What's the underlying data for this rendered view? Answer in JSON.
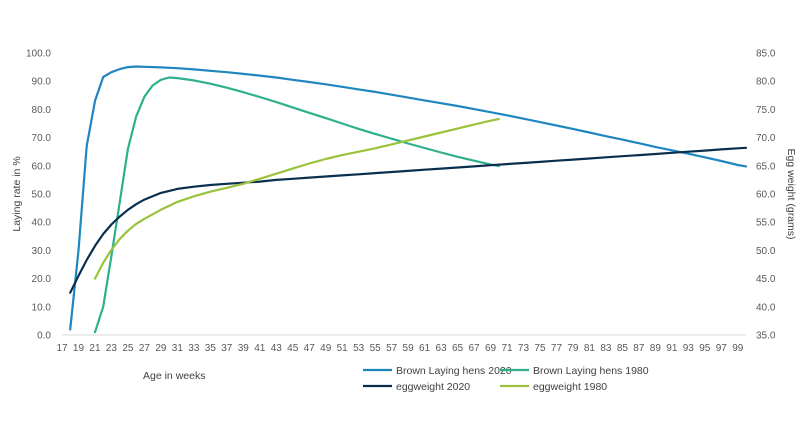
{
  "chart_data": {
    "type": "line",
    "title": "",
    "xlabel": "Age in weeks",
    "ylabel_left": "Laying rate in %",
    "ylabel_right": "Egg weight (grams)",
    "xlim": [
      17,
      100
    ],
    "ylim_left": [
      0,
      100
    ],
    "ylim_right": [
      35,
      85
    ],
    "x_ticks": [
      "17",
      "19",
      "21",
      "23",
      "25",
      "27",
      "29",
      "31",
      "33",
      "35",
      "37",
      "39",
      "41",
      "43",
      "45",
      "47",
      "49",
      "51",
      "53",
      "55",
      "57",
      "59",
      "61",
      "63",
      "65",
      "67",
      "69",
      "71",
      "73",
      "75",
      "77",
      "79",
      "81",
      "83",
      "85",
      "87",
      "89",
      "91",
      "93",
      "95",
      "97",
      "99"
    ],
    "y_left_ticks": [
      "0.0",
      "10.0",
      "20.0",
      "30.0",
      "40.0",
      "50.0",
      "60.0",
      "70.0",
      "80.0",
      "90.0",
      "100.0"
    ],
    "y_right_ticks": [
      "35.0",
      "40.0",
      "45.0",
      "50.0",
      "55.0",
      "60.0",
      "65.0",
      "70.0",
      "75.0",
      "80.0",
      "85.0"
    ],
    "legend_position": "bottom",
    "series": [
      {
        "name": "Brown Laying hens 2020",
        "axis": "left",
        "color": "#1f86bf",
        "points": [
          [
            18,
            2
          ],
          [
            19,
            30
          ],
          [
            20,
            67
          ],
          [
            21,
            83
          ],
          [
            22,
            91.5
          ],
          [
            23,
            93.2
          ],
          [
            24,
            94.3
          ],
          [
            25,
            95
          ],
          [
            26,
            95.2
          ],
          [
            27,
            95.1
          ],
          [
            29,
            94.9
          ],
          [
            31,
            94.6
          ],
          [
            33,
            94.2
          ],
          [
            35,
            93.7
          ],
          [
            37,
            93.2
          ],
          [
            39,
            92.6
          ],
          [
            41,
            92
          ],
          [
            43,
            91.3
          ],
          [
            45,
            90.5
          ],
          [
            47,
            89.7
          ],
          [
            49,
            88.9
          ],
          [
            51,
            88
          ],
          [
            53,
            87.1
          ],
          [
            55,
            86.2
          ],
          [
            57,
            85.2
          ],
          [
            59,
            84.2
          ],
          [
            61,
            83.2
          ],
          [
            63,
            82.2
          ],
          [
            65,
            81.2
          ],
          [
            67,
            80.1
          ],
          [
            69,
            79
          ],
          [
            71,
            77.9
          ],
          [
            73,
            76.7
          ],
          [
            75,
            75.5
          ],
          [
            77,
            74.3
          ],
          [
            79,
            73.1
          ],
          [
            81,
            71.8
          ],
          [
            83,
            70.5
          ],
          [
            85,
            69.3
          ],
          [
            87,
            68
          ],
          [
            89,
            66.7
          ],
          [
            91,
            65.5
          ],
          [
            93,
            64.3
          ],
          [
            95,
            63
          ],
          [
            97,
            61.7
          ],
          [
            99,
            60.3
          ],
          [
            100,
            59.8
          ]
        ]
      },
      {
        "name": "Brown Laying hens 1980",
        "axis": "left",
        "color": "#2fb08c",
        "points": [
          [
            21,
            1
          ],
          [
            22,
            10
          ],
          [
            23,
            28
          ],
          [
            24,
            47
          ],
          [
            25,
            66
          ],
          [
            26,
            77.5
          ],
          [
            27,
            84.5
          ],
          [
            28,
            88.5
          ],
          [
            29,
            90.5
          ],
          [
            30,
            91.3
          ],
          [
            31,
            91.1
          ],
          [
            33,
            90.3
          ],
          [
            35,
            89.1
          ],
          [
            37,
            87.7
          ],
          [
            39,
            86.1
          ],
          [
            41,
            84.4
          ],
          [
            43,
            82.6
          ],
          [
            45,
            80.7
          ],
          [
            47,
            78.8
          ],
          [
            49,
            76.9
          ],
          [
            51,
            75
          ],
          [
            53,
            73.1
          ],
          [
            55,
            71.3
          ],
          [
            57,
            69.6
          ],
          [
            59,
            67.9
          ],
          [
            61,
            66.3
          ],
          [
            63,
            64.7
          ],
          [
            65,
            63.2
          ],
          [
            67,
            61.8
          ],
          [
            69,
            60.5
          ],
          [
            70,
            59.9
          ]
        ]
      },
      {
        "name": "eggweight 2020",
        "axis": "right",
        "color": "#0a2f4e",
        "points": [
          [
            18,
            42.5
          ],
          [
            19,
            45.5
          ],
          [
            20,
            48.3
          ],
          [
            21,
            50.8
          ],
          [
            22,
            52.9
          ],
          [
            23,
            54.6
          ],
          [
            24,
            56
          ],
          [
            25,
            57.2
          ],
          [
            26,
            58.2
          ],
          [
            27,
            59
          ],
          [
            29,
            60.2
          ],
          [
            31,
            60.9
          ],
          [
            33,
            61.3
          ],
          [
            35,
            61.6
          ],
          [
            37,
            61.8
          ],
          [
            39,
            62
          ],
          [
            41,
            62.2
          ],
          [
            43,
            62.5
          ],
          [
            45,
            62.7
          ],
          [
            47,
            62.9
          ],
          [
            49,
            63.1
          ],
          [
            51,
            63.3
          ],
          [
            53,
            63.5
          ],
          [
            55,
            63.7
          ],
          [
            57,
            63.9
          ],
          [
            59,
            64.1
          ],
          [
            61,
            64.3
          ],
          [
            63,
            64.5
          ],
          [
            65,
            64.7
          ],
          [
            67,
            64.9
          ],
          [
            69,
            65.1
          ],
          [
            71,
            65.3
          ],
          [
            73,
            65.5
          ],
          [
            75,
            65.7
          ],
          [
            77,
            65.9
          ],
          [
            79,
            66.1
          ],
          [
            81,
            66.3
          ],
          [
            83,
            66.5
          ],
          [
            85,
            66.7
          ],
          [
            87,
            66.9
          ],
          [
            89,
            67.1
          ],
          [
            91,
            67.3
          ],
          [
            93,
            67.5
          ],
          [
            95,
            67.7
          ],
          [
            97,
            67.9
          ],
          [
            99,
            68.1
          ],
          [
            100,
            68.2
          ]
        ]
      },
      {
        "name": "eggweight 1980",
        "axis": "right",
        "color": "#9bc23c",
        "points": [
          [
            21,
            45
          ],
          [
            22,
            47.8
          ],
          [
            23,
            50.1
          ],
          [
            24,
            52
          ],
          [
            25,
            53.5
          ],
          [
            26,
            54.7
          ],
          [
            27,
            55.6
          ],
          [
            29,
            57.2
          ],
          [
            31,
            58.6
          ],
          [
            33,
            59.6
          ],
          [
            35,
            60.4
          ],
          [
            37,
            61.1
          ],
          [
            39,
            61.8
          ],
          [
            41,
            62.7
          ],
          [
            43,
            63.6
          ],
          [
            45,
            64.5
          ],
          [
            47,
            65.4
          ],
          [
            49,
            66.2
          ],
          [
            51,
            66.9
          ],
          [
            53,
            67.5
          ],
          [
            55,
            68.1
          ],
          [
            57,
            68.8
          ],
          [
            59,
            69.5
          ],
          [
            61,
            70.2
          ],
          [
            63,
            70.9
          ],
          [
            65,
            71.6
          ],
          [
            67,
            72.3
          ],
          [
            69,
            73
          ],
          [
            70,
            73.3
          ]
        ]
      }
    ]
  }
}
